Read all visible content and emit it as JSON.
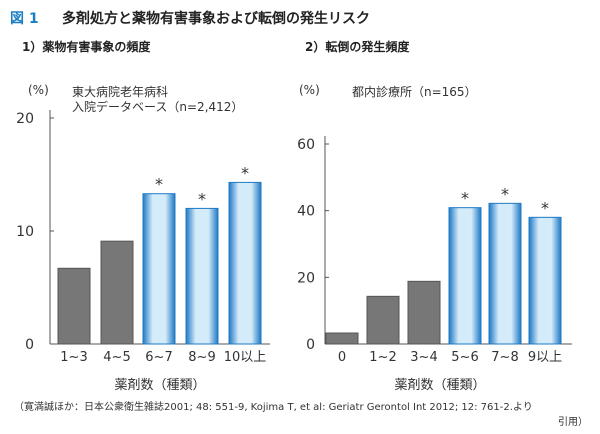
{
  "figure_label": "図 1",
  "title": "多剤処方と薬物有害事象および転倒の発生リスク",
  "subtitles": [
    "1）薬物有害事象の頻度",
    "2）転倒の発生頻度"
  ],
  "source_line1": "（寛満誠ほか：日本公衆衛生雑誌2001; 48: 551-9, Kojima T, et al: Geriatr Gerontol Int 2012; 12: 761-2.より",
  "source_line2": "引用）",
  "colors": {
    "gray_bar": "#777777",
    "blue_bar_edge": "#1f79c4",
    "blue_bar_fill": "#d4ebfa"
  },
  "chart_data": [
    {
      "type": "bar",
      "title": "1）薬物有害事象の頻度",
      "annotation": [
        "東大病院老年病科",
        "入院データベース（n=2,412）"
      ],
      "unit_label": "(%)",
      "xlabel": "薬剤数（種類）",
      "categories": [
        "1~3",
        "4~5",
        "6~7",
        "8~9",
        "10以上"
      ],
      "values": [
        6.7,
        9.1,
        13.3,
        12.0,
        14.3
      ],
      "significant": [
        false,
        false,
        true,
        true,
        true
      ],
      "ylim": [
        0,
        20
      ],
      "yticks": [
        0,
        10,
        20
      ],
      "grid": false
    },
    {
      "type": "bar",
      "title": "2）転倒の発生頻度",
      "annotation": [
        "都内診療所（n=165）"
      ],
      "unit_label": "(%)",
      "xlabel": "薬剤数（種類）",
      "categories": [
        "0",
        "1~2",
        "3~4",
        "5~6",
        "7~8",
        "9以上"
      ],
      "values": [
        3.3,
        14.3,
        18.8,
        40.9,
        42.2,
        38.0
      ],
      "significant": [
        false,
        false,
        false,
        true,
        true,
        true
      ],
      "ylim": [
        0,
        60
      ],
      "yticks": [
        0,
        20,
        40,
        60
      ],
      "grid": false
    }
  ]
}
